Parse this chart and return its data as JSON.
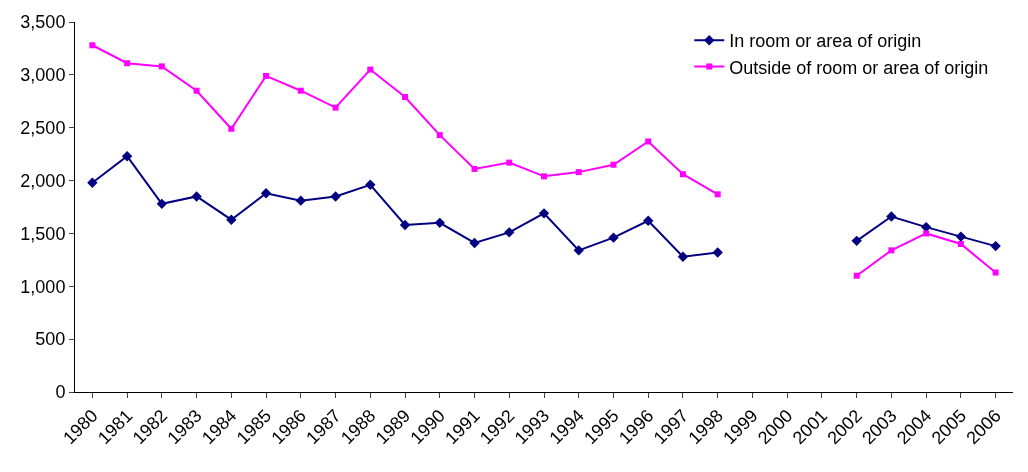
{
  "chart_data": {
    "type": "line",
    "categories": [
      "1980",
      "1981",
      "1982",
      "1983",
      "1984",
      "1985",
      "1986",
      "1987",
      "1988",
      "1989",
      "1990",
      "1991",
      "1992",
      "1993",
      "1994",
      "1995",
      "1996",
      "1997",
      "1998",
      "1999",
      "2000",
      "2001",
      "2002",
      "2003",
      "2004",
      "2005",
      "2006"
    ],
    "series": [
      {
        "name": "In room or area of origin",
        "color": "#000080",
        "marker": "diamond",
        "values": [
          1980,
          2230,
          1780,
          1850,
          1630,
          1880,
          1810,
          1850,
          1960,
          1580,
          1600,
          1410,
          1510,
          1690,
          1340,
          1460,
          1620,
          1280,
          1320,
          null,
          null,
          null,
          1430,
          1660,
          1560,
          1470,
          1380
        ]
      },
      {
        "name": "Outside of room or area of origin",
        "color": "#ff00ff",
        "marker": "square",
        "values": [
          3280,
          3110,
          3080,
          2850,
          2490,
          2990,
          2850,
          2690,
          3050,
          2790,
          2430,
          2110,
          2170,
          2040,
          2080,
          2150,
          2370,
          2060,
          1870,
          null,
          null,
          null,
          1100,
          1340,
          1500,
          1400,
          1130
        ]
      }
    ],
    "ylim": [
      0,
      3500
    ],
    "yticks": [
      {
        "value": 0,
        "label": "0"
      },
      {
        "value": 500,
        "label": "500"
      },
      {
        "value": 1000,
        "label": "1,000"
      },
      {
        "value": 1500,
        "label": "1,500"
      },
      {
        "value": 2000,
        "label": "2,000"
      },
      {
        "value": 2500,
        "label": "2,500"
      },
      {
        "value": 3000,
        "label": "3,000"
      },
      {
        "value": 3500,
        "label": "3,500"
      }
    ],
    "legend": "top right",
    "line_style": "solid"
  }
}
